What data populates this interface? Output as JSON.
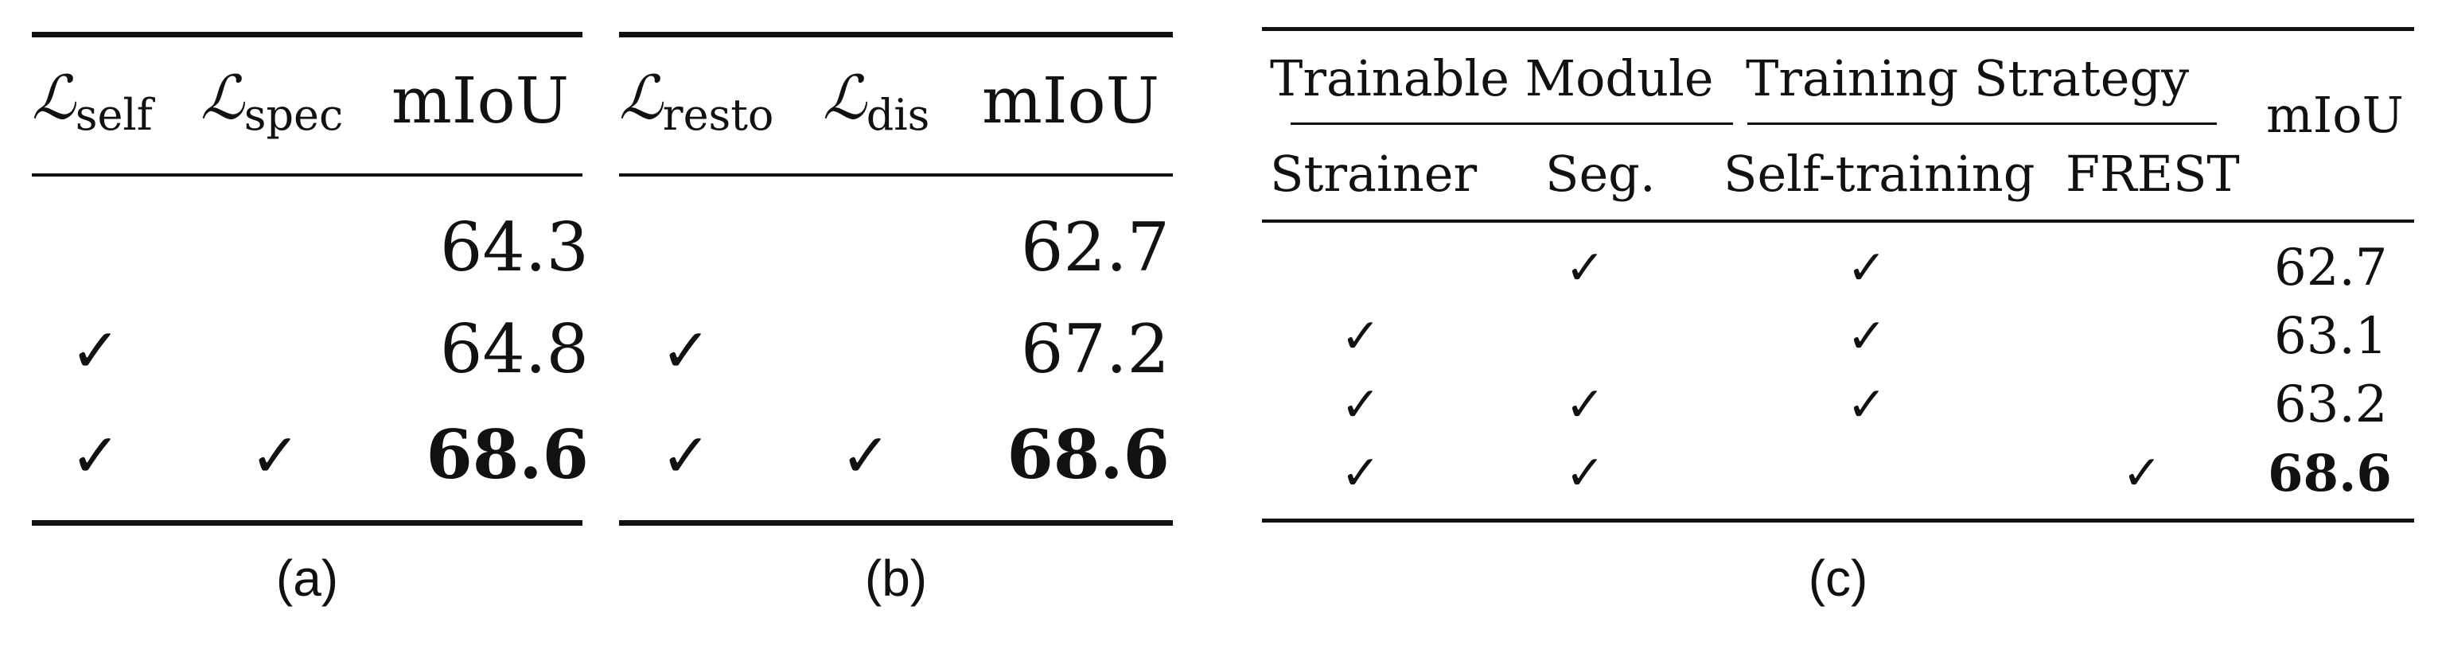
{
  "table_a": {
    "headers": {
      "loss1_base": "ℒ",
      "loss1_sub": "self",
      "loss2_base": "ℒ",
      "loss2_sub": "spec",
      "metric": "mIoU"
    },
    "rows": [
      {
        "c1": "",
        "c2": "",
        "miou": "64.3"
      },
      {
        "c1": "✓",
        "c2": "",
        "miou": "64.8"
      },
      {
        "c1": "✓",
        "c2": "✓",
        "miou": "68.6"
      }
    ],
    "caption": "(a)"
  },
  "table_b": {
    "headers": {
      "loss1_base": "ℒ",
      "loss1_sub": "resto",
      "loss2_base": "ℒ",
      "loss2_sub": "dis",
      "metric": "mIoU"
    },
    "rows": [
      {
        "c1": "",
        "c2": "",
        "miou": "62.7"
      },
      {
        "c1": "✓",
        "c2": "",
        "miou": "67.2"
      },
      {
        "c1": "✓",
        "c2": "✓",
        "miou": "68.6"
      }
    ],
    "caption": "(b)"
  },
  "table_c": {
    "group1": "Trainable Module",
    "group2": "Training Strategy",
    "metric": "mIoU",
    "subheaders": {
      "strainer": "Strainer",
      "seg": "Seg.",
      "self_training": "Self-training",
      "frest": "FREST"
    },
    "rows": [
      {
        "strainer": "",
        "seg": "✓",
        "self_training": "✓",
        "frest": "",
        "miou": "62.7"
      },
      {
        "strainer": "✓",
        "seg": "",
        "self_training": "✓",
        "frest": "",
        "miou": "63.1"
      },
      {
        "strainer": "✓",
        "seg": "✓",
        "self_training": "✓",
        "frest": "",
        "miou": "63.2"
      },
      {
        "strainer": "✓",
        "seg": "✓",
        "self_training": "",
        "frest": "✓",
        "miou": "68.6"
      }
    ],
    "caption": "(c)"
  }
}
